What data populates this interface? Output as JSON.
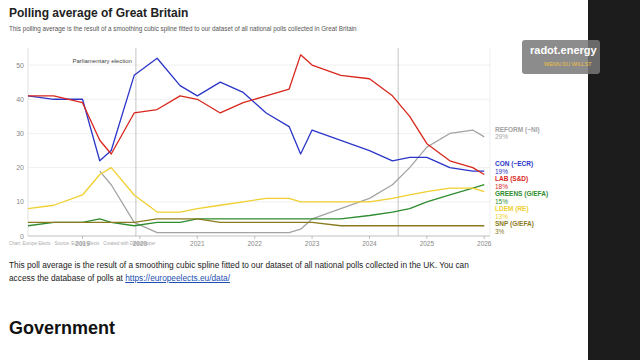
{
  "page": {
    "source": "Chart: Europe Elects · Source: Europe Elects · Created with Datawrapper",
    "paragraph": "This poll average is the result of a smoothing cubic spline fitted to our dataset of all national polls collected in the UK. You can access the database of polls at",
    "link": "https://europeelects.eu/data/",
    "heading": "Government",
    "logo": "radot.energy",
    "logo_tagline": "WENN DU WILLST"
  },
  "chart_data": {
    "type": "line",
    "title": "Polling average of Great Britain",
    "subtitle": "This polling average is the result of a smoothing cubic spline fitted to our dataset of all national polls collected in Great Britain",
    "x": [
      2018.05,
      2018.5,
      2019.0,
      2019.3,
      2019.5,
      2019.9,
      2020.3,
      2020.7,
      2021.0,
      2021.4,
      2021.8,
      2022.2,
      2022.6,
      2022.8,
      2023.0,
      2023.5,
      2024.0,
      2024.4,
      2024.7,
      2025.0,
      2025.4,
      2025.8,
      2026.0
    ],
    "xlim": [
      2018.05,
      2026.1
    ],
    "xticks": [
      2019,
      2020,
      2021,
      2022,
      2023,
      2024,
      2025,
      2026
    ],
    "ylim": [
      0,
      55
    ],
    "yticks": [
      0,
      10,
      20,
      30,
      40,
      50
    ],
    "grid": true,
    "series": [
      {
        "name": "REFORM (~NI)",
        "color": "#a3a3a3",
        "values": [
          null,
          null,
          null,
          19,
          15,
          4,
          1,
          1,
          1,
          1,
          1,
          1,
          1,
          2,
          5,
          8,
          11,
          15,
          20,
          26,
          30,
          31,
          29
        ],
        "value_labels": [
          null,
          null,
          null,
          null,
          null,
          null,
          null,
          null,
          null,
          null,
          null,
          null,
          null,
          null,
          null,
          null,
          null,
          null,
          null,
          null,
          null,
          null,
          "29%"
        ]
      },
      {
        "name": "CON (~ECR)",
        "color": "#2b35c9",
        "values": [
          41,
          40,
          40,
          22,
          25,
          47,
          52,
          44,
          41,
          45,
          42,
          36,
          32,
          24,
          31,
          28,
          25,
          22,
          23,
          23,
          20,
          19,
          19
        ],
        "value_labels": [
          null,
          null,
          null,
          null,
          null,
          null,
          null,
          null,
          null,
          null,
          null,
          null,
          null,
          null,
          null,
          null,
          null,
          null,
          null,
          null,
          null,
          null,
          "19%"
        ]
      },
      {
        "name": "LAB (S&D)",
        "color": "#d9261c",
        "values": [
          41,
          41,
          39,
          28,
          24,
          36,
          37,
          41,
          40,
          36,
          39,
          41,
          43,
          53,
          50,
          47,
          46,
          41,
          35,
          27,
          22,
          20,
          18
        ],
        "value_labels": [
          null,
          null,
          null,
          null,
          null,
          null,
          null,
          null,
          null,
          null,
          null,
          null,
          null,
          null,
          null,
          null,
          null,
          null,
          null,
          null,
          null,
          null,
          "18%"
        ]
      },
      {
        "name": "GREENS (G/EFA)",
        "color": "#2e8b2e",
        "values": [
          3,
          4,
          4,
          5,
          4,
          3,
          4,
          4,
          5,
          5,
          5,
          5,
          5,
          5,
          5,
          5,
          6,
          7,
          8,
          10,
          12,
          14,
          15
        ],
        "value_labels": [
          null,
          null,
          null,
          null,
          null,
          null,
          null,
          null,
          null,
          null,
          null,
          null,
          null,
          null,
          null,
          null,
          null,
          null,
          null,
          null,
          null,
          null,
          "15%"
        ]
      },
      {
        "name": "LDEM (RE)",
        "color": "#f0cf2e",
        "values": [
          8,
          9,
          12,
          18,
          20,
          12,
          7,
          7,
          8,
          9,
          10,
          11,
          11,
          10,
          10,
          10,
          10,
          11,
          12,
          13,
          14,
          14,
          13
        ],
        "value_labels": [
          null,
          null,
          null,
          null,
          null,
          null,
          null,
          null,
          null,
          null,
          null,
          null,
          null,
          null,
          null,
          null,
          null,
          null,
          null,
          null,
          null,
          null,
          "13%"
        ]
      },
      {
        "name": "SNP (G/EFA)",
        "color": "#8a7a1e",
        "values": [
          4,
          4,
          4,
          4,
          4,
          4,
          5,
          5,
          5,
          4,
          4,
          4,
          4,
          4,
          4,
          3,
          3,
          3,
          3,
          3,
          3,
          3,
          3
        ],
        "value_labels": [
          null,
          null,
          null,
          null,
          null,
          null,
          null,
          null,
          null,
          null,
          null,
          null,
          null,
          null,
          null,
          null,
          null,
          null,
          null,
          null,
          null,
          null,
          "3%"
        ]
      }
    ],
    "annotations": [
      {
        "x": 2019.93,
        "label": "Parliamentary election"
      },
      {
        "x": 2024.5
      }
    ]
  }
}
